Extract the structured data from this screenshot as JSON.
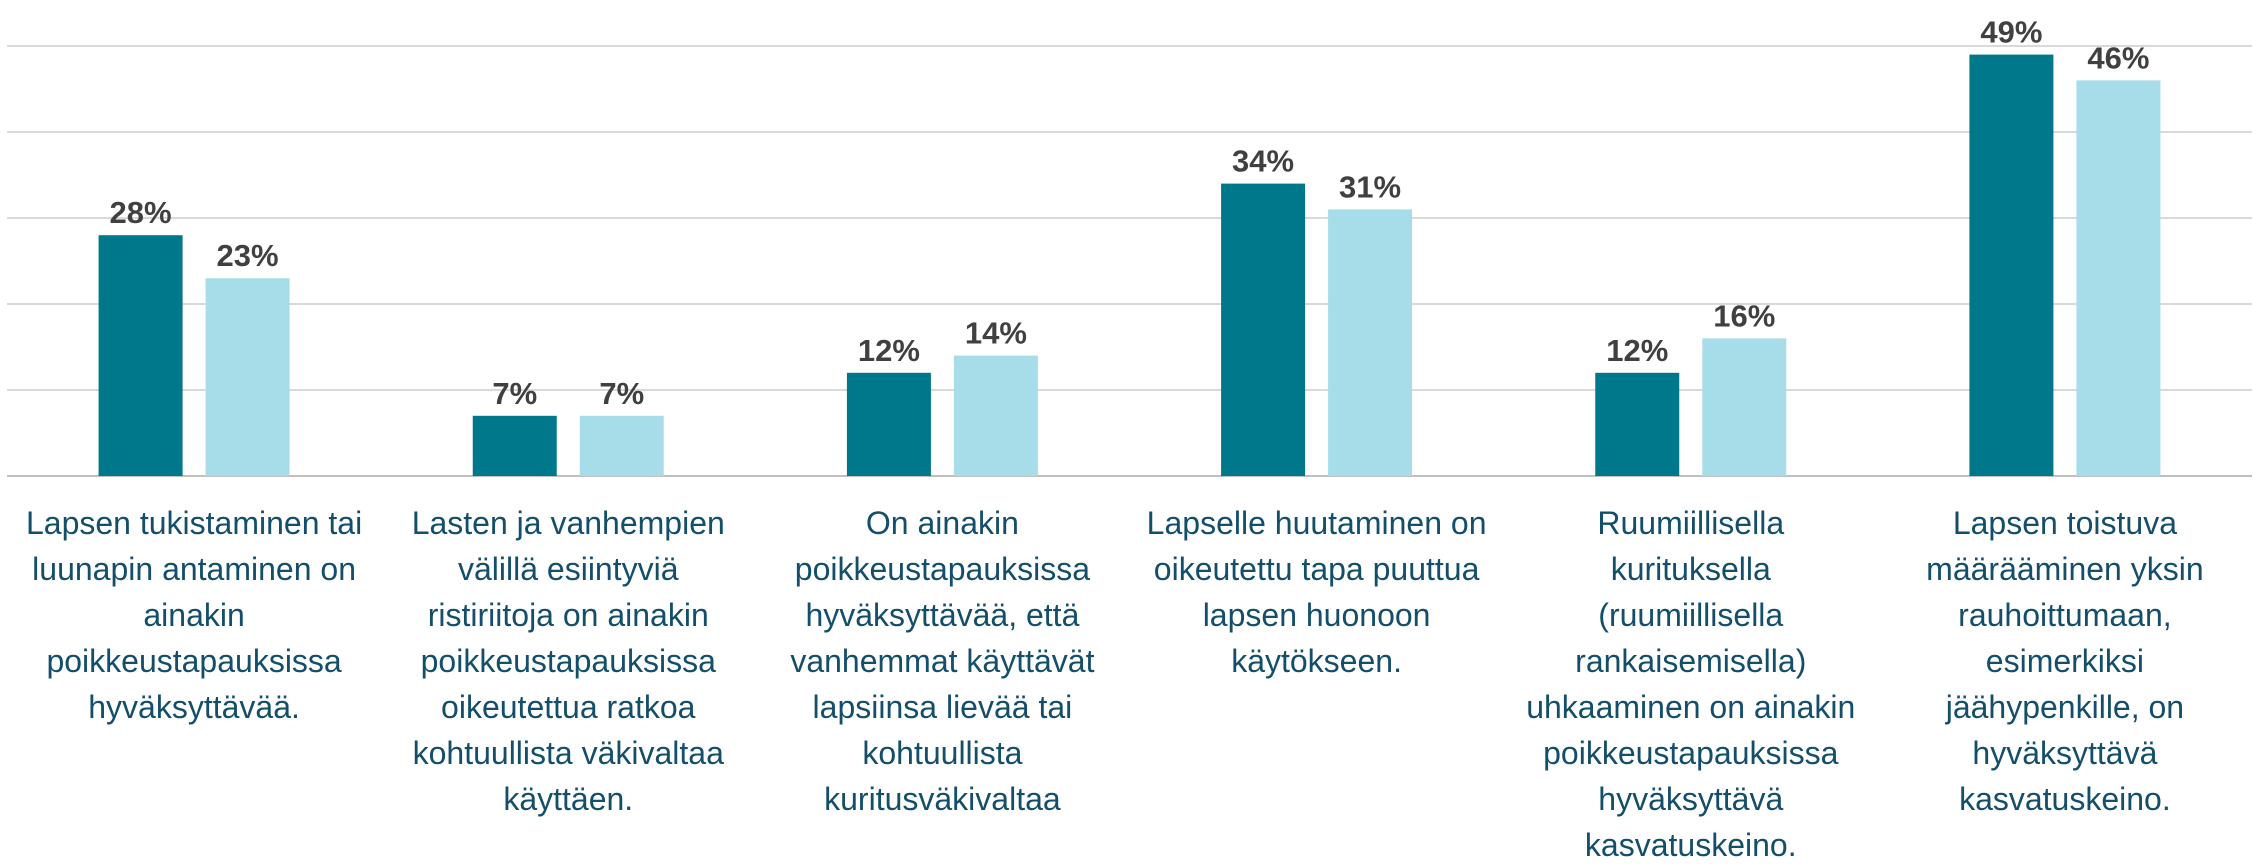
{
  "chart_data": {
    "type": "bar",
    "categories": [
      "Lapsen tukistaminen tai\nluunapin antaminen on\nainakin\npoikkeustapauksissa\nhyväksyttävää.",
      "Lasten ja vanhempien\nvälillä esiintyviä\nristiriitoja on ainakin\npoikkeustapauksissa\noikeutettua ratkoa\nkohtuullista väkivaltaa\nkäyttäen.",
      "On ainakin\npoikkeustapauksissa\nhyväksyttävää, että\nvanhemmat käyttävät\nlapsiinsa lievää tai\nkohtuullista\nkuritusväkivaltaa",
      "Lapselle huutaminen on\noikeutettu tapa puuttua\nlapsen huonoon\nkäytökseen.",
      "Ruumiillisella\nkurituksella\n(ruumiillisella\nrankaisemisella)\nuhkaaminen on ainakin\npoikkeustapauksissa\nhyväksyttävä\nkasvatuskeino.",
      "Lapsen toistuva\nmäärääminen yksin\nrauhoittumaan,\nesimerkiksi\njäähypenkille, on\nhyväksyttävä\nkasvatuskeino."
    ],
    "series": [
      {
        "color": "#00788c",
        "values": [
          28,
          7,
          12,
          34,
          12,
          49
        ],
        "value_labels": [
          "28%",
          "7%",
          "12%",
          "34%",
          "12%",
          "49%"
        ]
      },
      {
        "color": "#a7dde9",
        "values": [
          23,
          7,
          14,
          31,
          16,
          46
        ],
        "value_labels": [
          "23%",
          "7%",
          "14%",
          "31%",
          "16%",
          "46%"
        ]
      }
    ],
    "ylim": [
      0,
      50
    ],
    "yticks": [
      0,
      10,
      20,
      30,
      40,
      50
    ],
    "grid": true
  }
}
